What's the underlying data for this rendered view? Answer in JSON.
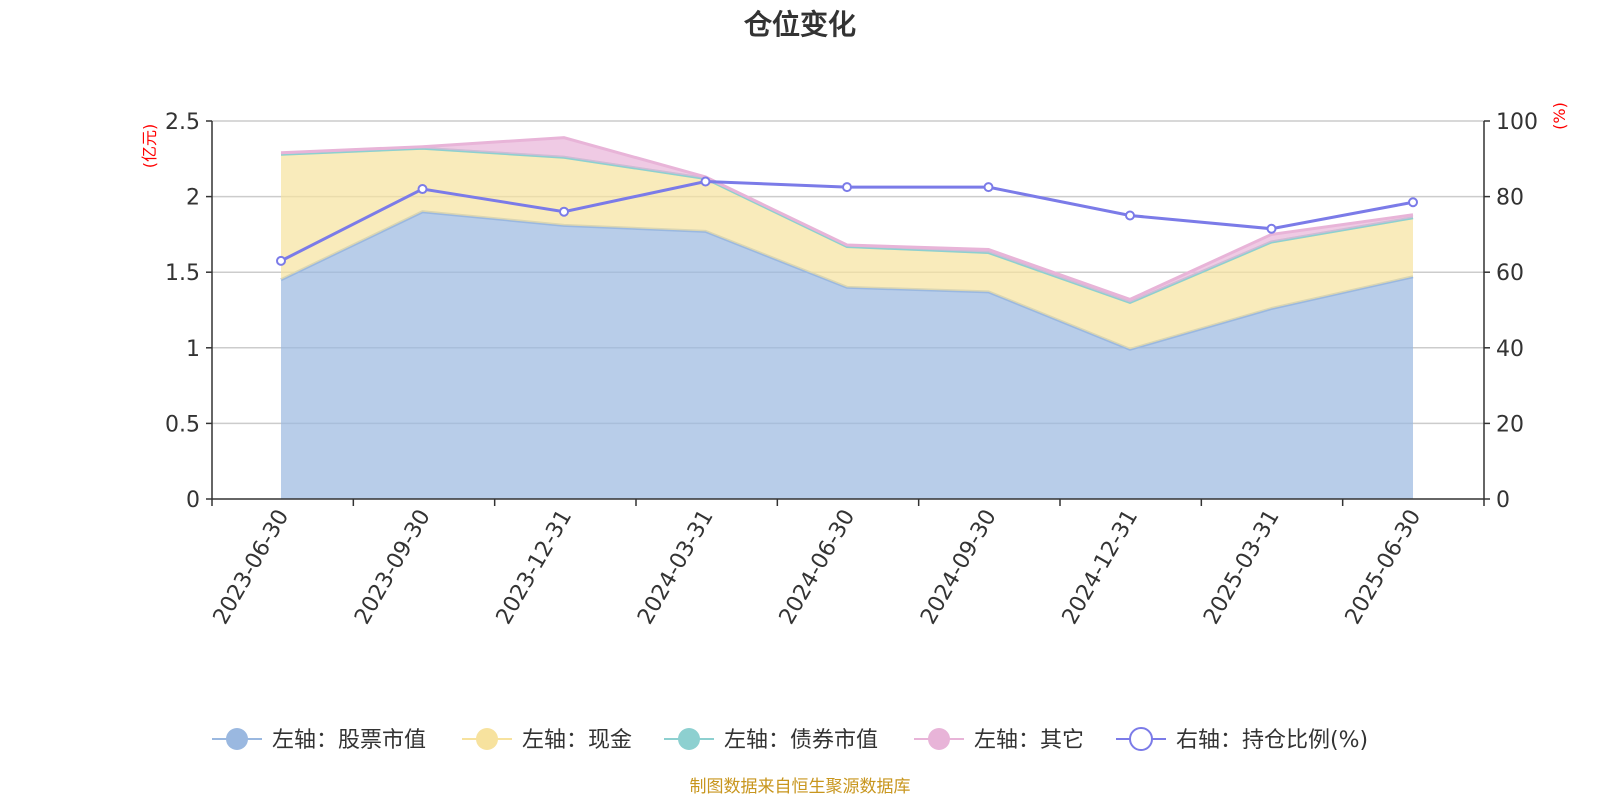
{
  "title": "仓位变化",
  "source": "制图数据来自恒生聚源数据库",
  "chart_data": {
    "type": "area",
    "title": "仓位变化",
    "x": [
      "2023-06-30",
      "2023-09-30",
      "2023-12-31",
      "2024-03-31",
      "2024-06-30",
      "2024-09-30",
      "2024-12-31",
      "2025-03-31",
      "2025-06-30"
    ],
    "left_axis": {
      "unit": "(亿元)",
      "min": 0,
      "max": 2.5,
      "ticks": [
        "0",
        "0.5",
        "1",
        "1.5",
        "2",
        "2.5"
      ],
      "tick_values": [
        0,
        0.5,
        1,
        1.5,
        2,
        2.5
      ]
    },
    "right_axis": {
      "unit": "(%)",
      "min": 0,
      "max": 100,
      "ticks": [
        "0",
        "20",
        "40",
        "60",
        "80",
        "100"
      ],
      "tick_values": [
        0,
        20,
        40,
        60,
        80,
        100
      ]
    },
    "stacked": true,
    "series": [
      {
        "name": "左轴：股票市值",
        "axis": "left",
        "type": "area",
        "color": "#9ab8e0",
        "values": [
          1.45,
          1.9,
          1.81,
          1.77,
          1.4,
          1.37,
          0.99,
          1.26,
          1.47
        ]
      },
      {
        "name": "左轴：现金",
        "axis": "left",
        "type": "area",
        "color": "#f7e29e",
        "values": [
          0.83,
          0.42,
          0.45,
          0.35,
          0.27,
          0.26,
          0.31,
          0.44,
          0.39
        ]
      },
      {
        "name": "左轴：债券市值",
        "axis": "left",
        "type": "area",
        "color": "#8dd0d0",
        "values": [
          0,
          0,
          0,
          0,
          0,
          0,
          0,
          0,
          0
        ]
      },
      {
        "name": "左轴：其它",
        "axis": "left",
        "type": "area",
        "color": "#e8b4d8",
        "values": [
          0.01,
          0.01,
          0.13,
          0.01,
          0.01,
          0.02,
          0.02,
          0.05,
          0.02
        ]
      },
      {
        "name": "右轴：持仓比例(%)",
        "axis": "right",
        "type": "line",
        "color": "#7b7be8",
        "values": [
          63,
          82,
          76,
          84,
          82.5,
          82.5,
          75,
          71.5,
          78.5
        ]
      }
    ],
    "grid": true,
    "legend_position": "bottom"
  }
}
